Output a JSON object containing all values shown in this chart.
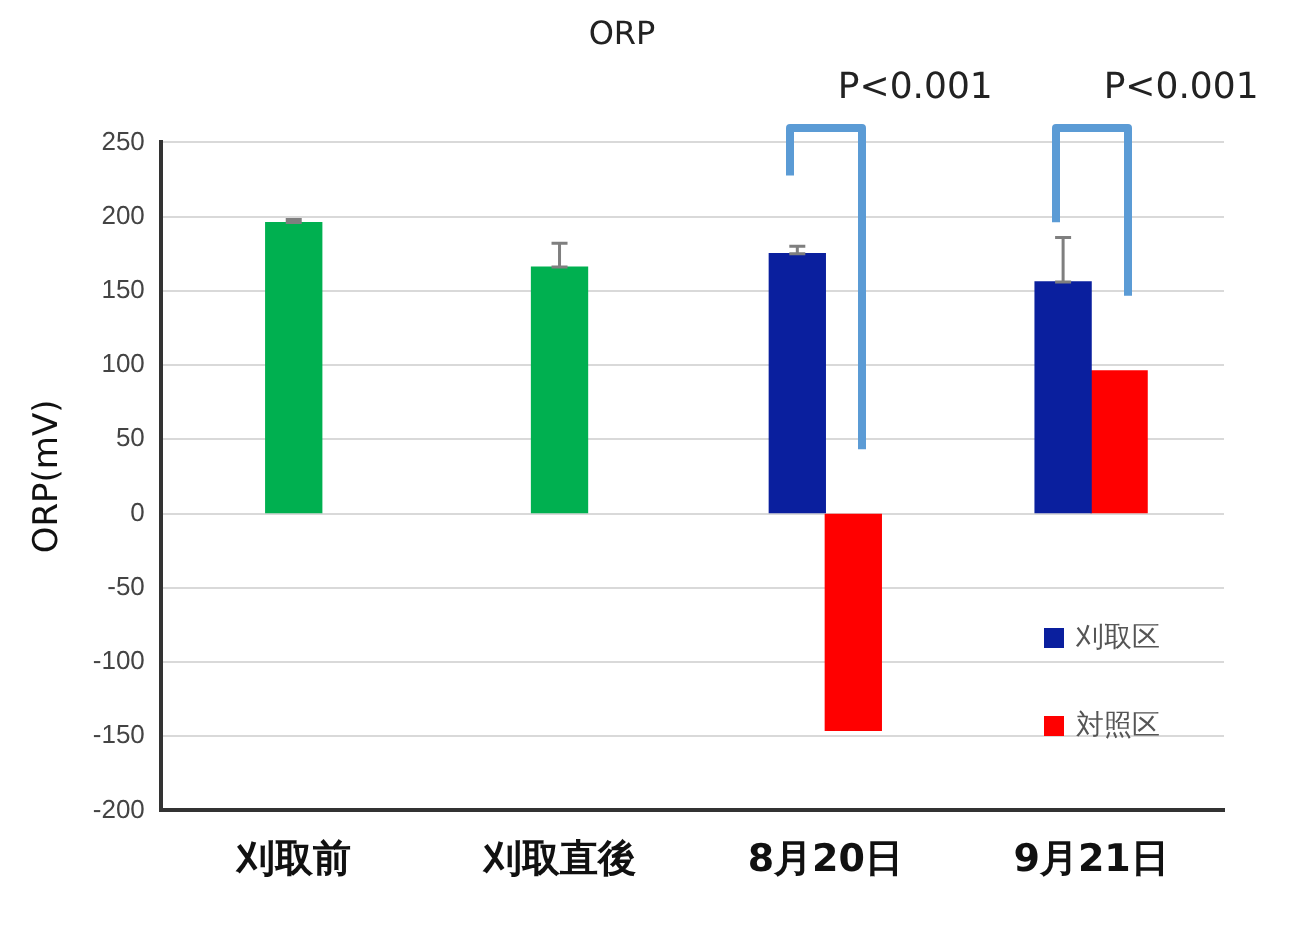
{
  "chart_data": {
    "type": "bar",
    "title": "ORP",
    "ylabel": "ORP(mV)",
    "categories": [
      "刈取前",
      "刈取直後",
      "8月20日",
      "9月21日"
    ],
    "series": [
      {
        "color": "#00b050",
        "values": [
          196,
          166,
          null,
          null
        ],
        "errors": [
          [
            196,
            198
          ],
          [
            166,
            182
          ],
          null,
          null
        ]
      },
      {
        "name": "刈取区",
        "color": "#0a1f9e",
        "values": [
          null,
          null,
          175,
          156
        ],
        "errors": [
          null,
          null,
          [
            175,
            180
          ],
          [
            156,
            186
          ]
        ]
      },
      {
        "name": "対照区",
        "color": "#ff0000",
        "values": [
          null,
          null,
          -146,
          96
        ]
      }
    ],
    "ylim": [
      -200,
      250
    ],
    "yticks": [
      -200,
      -150,
      -100,
      -50,
      0,
      50,
      100,
      150,
      200,
      250
    ],
    "grid": "y",
    "legend": "bottom right",
    "annotations": [
      "P<0.001",
      "P<0.001"
    ]
  }
}
